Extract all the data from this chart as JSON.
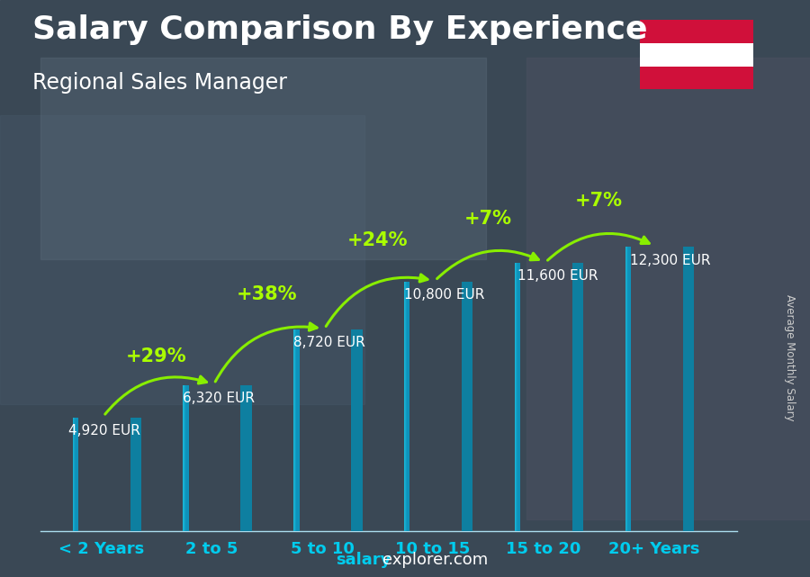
{
  "title": "Salary Comparison By Experience",
  "subtitle": "Regional Sales Manager",
  "categories": [
    "< 2 Years",
    "2 to 5",
    "5 to 10",
    "10 to 15",
    "15 to 20",
    "20+ Years"
  ],
  "values": [
    4920,
    6320,
    8720,
    10800,
    11600,
    12300
  ],
  "labels": [
    "4,920 EUR",
    "6,320 EUR",
    "8,720 EUR",
    "10,800 EUR",
    "11,600 EUR",
    "12,300 EUR"
  ],
  "pct_changes": [
    null,
    "+29%",
    "+38%",
    "+24%",
    "+7%",
    "+7%"
  ],
  "bar_face_color": "#1ab8d8",
  "bar_side_color": "#0e7fa0",
  "bar_top_color": "#40d0f0",
  "bg_color_top": "#3a4a5a",
  "bg_color_bottom": "#2a3540",
  "title_color": "#ffffff",
  "subtitle_color": "#ffffff",
  "label_color": "#ffffff",
  "pct_color": "#aaff00",
  "xtick_color": "#00ccee",
  "watermark_bold": "salary",
  "watermark_normal": "explorer.com",
  "ylabel_text": "Average Monthly Salary",
  "ylim": [
    0,
    14500
  ],
  "bar_width": 0.52,
  "bar_depth": 0.1,
  "title_fontsize": 26,
  "subtitle_fontsize": 17,
  "label_fontsize": 11,
  "pct_fontsize": 15,
  "xtick_fontsize": 13,
  "watermark_fontsize": 13,
  "flag_colors": [
    "#d0103a",
    "#ffffff",
    "#d0103a"
  ],
  "arrow_color": "#88ee00"
}
